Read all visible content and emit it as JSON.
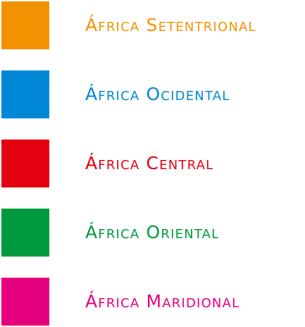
{
  "legend": {
    "items": [
      {
        "label": "África Setentrional",
        "color": "#F39200"
      },
      {
        "label": "África Ocidental",
        "color": "#0088D6"
      },
      {
        "label": "África Central",
        "color": "#E3000F"
      },
      {
        "label": "África Oriental",
        "color": "#009A3E"
      },
      {
        "label": "África Maridional",
        "color": "#E5007E"
      }
    ]
  }
}
